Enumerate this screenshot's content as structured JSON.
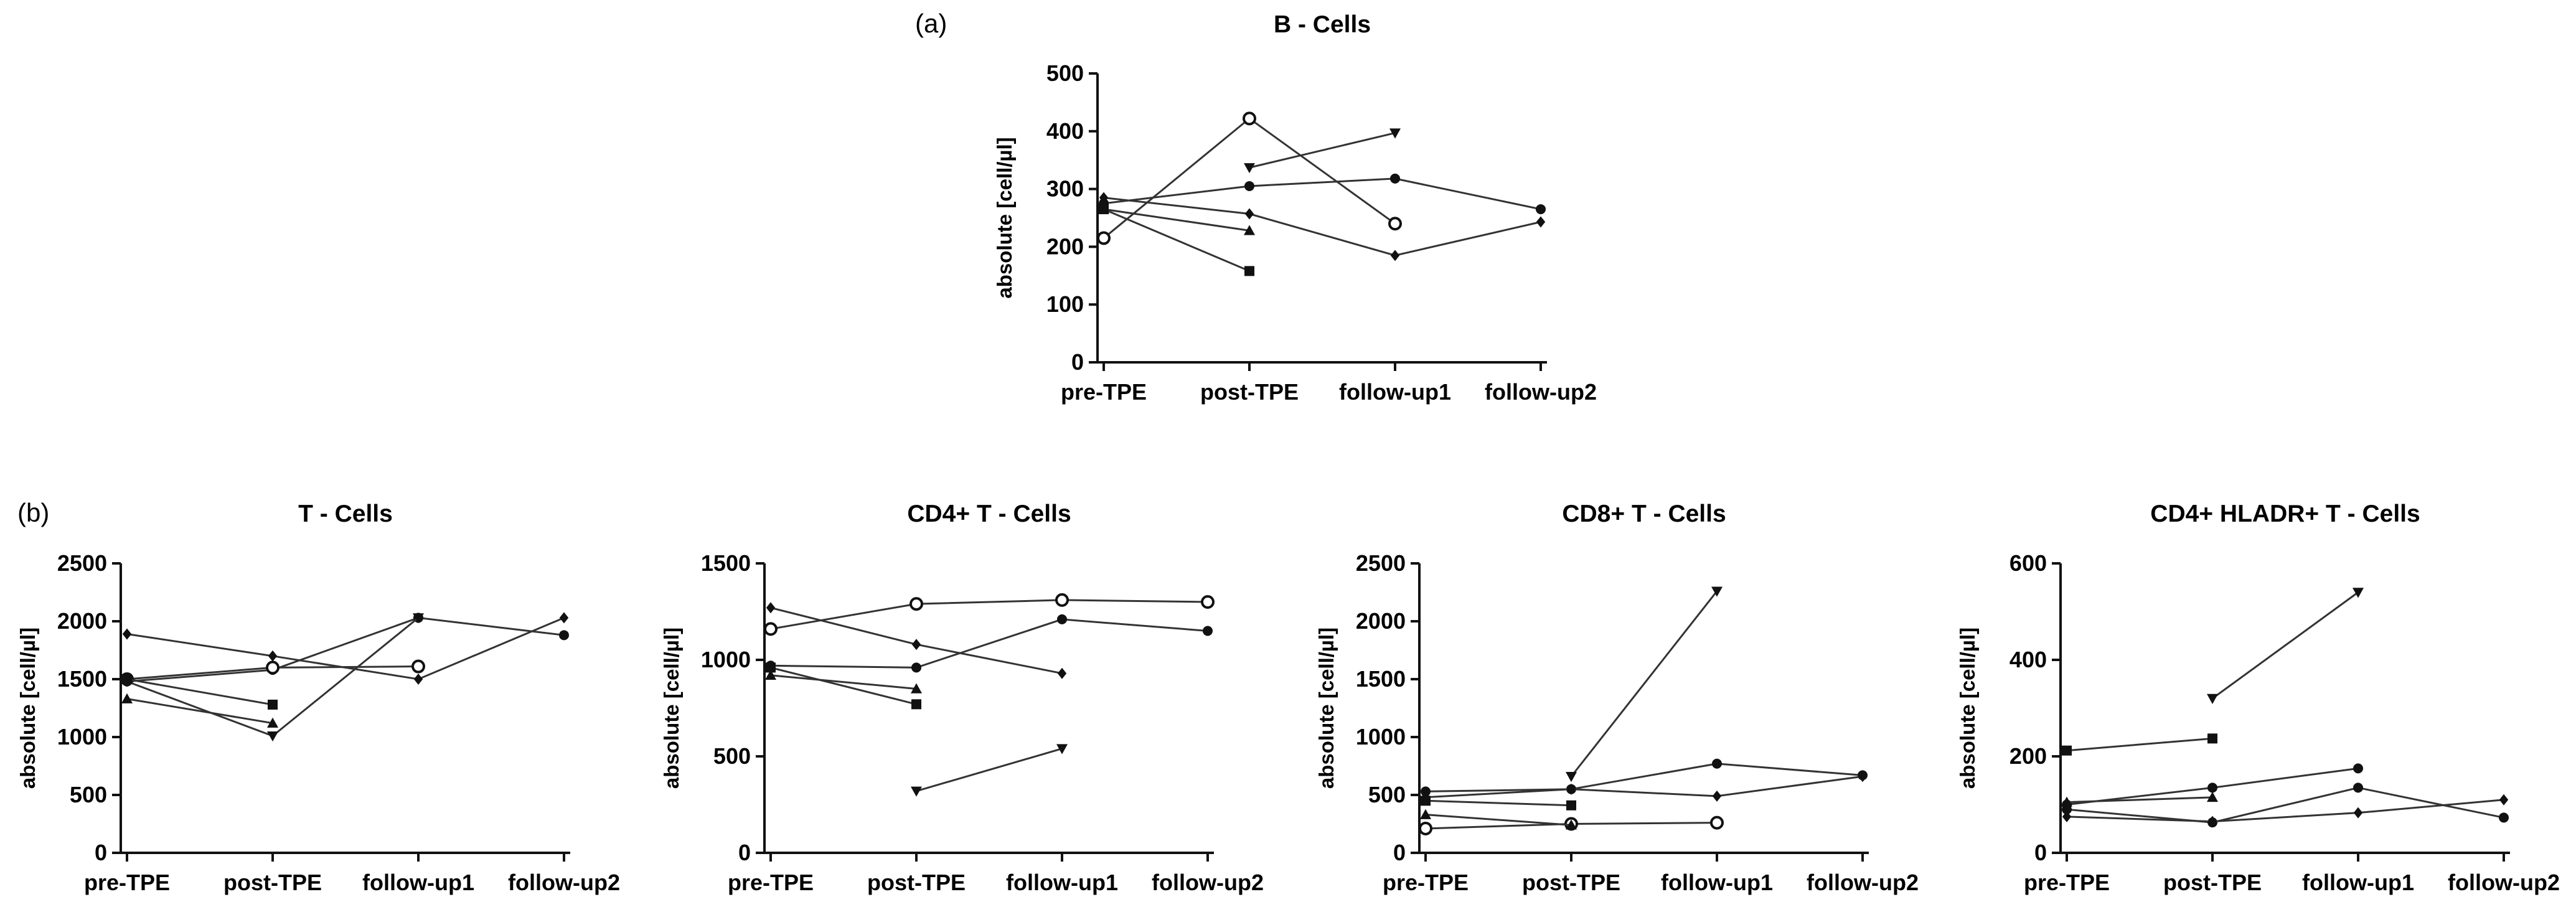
{
  "panel_labels": {
    "a": "(a)",
    "b": "(b)"
  },
  "chart_data": [
    {
      "id": "b-cells",
      "type": "line",
      "title": "B - Cells",
      "xlabel": "",
      "ylabel": "absolute [cell/µl]",
      "categories": [
        "pre-TPE",
        "post-TPE",
        "follow-up1",
        "follow-up2"
      ],
      "ylim": [
        0,
        500
      ],
      "yticks": [
        0,
        100,
        200,
        300,
        400,
        500
      ],
      "series": [
        {
          "name": "patient-circle-filled",
          "marker": "circle",
          "values": [
            275,
            305,
            318,
            265
          ]
        },
        {
          "name": "patient-circle-open",
          "marker": "circle-open",
          "values": [
            215,
            422,
            240,
            null
          ]
        },
        {
          "name": "patient-triangle-down",
          "marker": "triangle-down",
          "values": [
            null,
            337,
            397,
            null
          ]
        },
        {
          "name": "patient-diamond",
          "marker": "diamond",
          "values": [
            285,
            257,
            185,
            243
          ]
        },
        {
          "name": "patient-triangle-up",
          "marker": "triangle-up",
          "values": [
            265,
            228,
            null,
            null
          ]
        },
        {
          "name": "patient-square",
          "marker": "square",
          "values": [
            265,
            158,
            null,
            null
          ]
        }
      ]
    },
    {
      "id": "t-cells",
      "type": "line",
      "title": "T - Cells",
      "xlabel": "",
      "ylabel": "absolute [cell/µl]",
      "categories": [
        "pre-TPE",
        "post-TPE",
        "follow-up1",
        "follow-up2"
      ],
      "ylim": [
        0,
        2500
      ],
      "yticks": [
        0,
        500,
        1000,
        1500,
        2000,
        2500
      ],
      "series": [
        {
          "name": "patient-circle-filled",
          "marker": "circle",
          "values": [
            1480,
            1580,
            2030,
            1880
          ]
        },
        {
          "name": "patient-circle-open",
          "marker": "circle-open",
          "values": [
            1500,
            1600,
            1610,
            null
          ]
        },
        {
          "name": "patient-triangle-down",
          "marker": "triangle-down",
          "values": [
            1480,
            1010,
            2030,
            null
          ]
        },
        {
          "name": "patient-diamond",
          "marker": "diamond",
          "values": [
            1890,
            1700,
            1500,
            2030
          ]
        },
        {
          "name": "patient-triangle-up",
          "marker": "triangle-up",
          "values": [
            1330,
            1120,
            null,
            null
          ]
        },
        {
          "name": "patient-square",
          "marker": "square",
          "values": [
            1500,
            1280,
            null,
            null
          ]
        }
      ]
    },
    {
      "id": "cd4-t-cells",
      "type": "line",
      "title": "CD4+ T - Cells",
      "xlabel": "",
      "ylabel": "absolute [cell/µl]",
      "categories": [
        "pre-TPE",
        "post-TPE",
        "follow-up1",
        "follow-up2"
      ],
      "ylim": [
        0,
        1500
      ],
      "yticks": [
        0,
        500,
        1000,
        1500
      ],
      "series": [
        {
          "name": "patient-circle-filled",
          "marker": "circle",
          "values": [
            970,
            960,
            1210,
            1150
          ]
        },
        {
          "name": "patient-circle-open",
          "marker": "circle-open",
          "values": [
            1160,
            1290,
            1310,
            1300
          ]
        },
        {
          "name": "patient-triangle-down",
          "marker": "triangle-down",
          "values": [
            null,
            320,
            540,
            null
          ]
        },
        {
          "name": "patient-diamond",
          "marker": "diamond",
          "values": [
            1270,
            1080,
            930,
            null
          ]
        },
        {
          "name": "patient-triangle-up",
          "marker": "triangle-up",
          "values": [
            920,
            850,
            null,
            null
          ]
        },
        {
          "name": "patient-square",
          "marker": "square",
          "values": [
            960,
            770,
            null,
            null
          ]
        }
      ]
    },
    {
      "id": "cd8-t-cells",
      "type": "line",
      "title": "CD8+ T - Cells",
      "xlabel": "",
      "ylabel": "absolute [cell/µl]",
      "categories": [
        "pre-TPE",
        "post-TPE",
        "follow-up1",
        "follow-up2"
      ],
      "ylim": [
        0,
        2500
      ],
      "yticks": [
        0,
        500,
        1000,
        1500,
        2000,
        2500
      ],
      "series": [
        {
          "name": "patient-circle-filled",
          "marker": "circle",
          "values": [
            530,
            550,
            770,
            670
          ]
        },
        {
          "name": "patient-circle-open",
          "marker": "circle-open",
          "values": [
            210,
            250,
            260,
            null
          ]
        },
        {
          "name": "patient-triangle-down",
          "marker": "triangle-down",
          "values": [
            null,
            660,
            2260,
            null
          ]
        },
        {
          "name": "patient-diamond",
          "marker": "diamond",
          "values": [
            480,
            550,
            490,
            660
          ]
        },
        {
          "name": "patient-triangle-up",
          "marker": "triangle-up",
          "values": [
            330,
            240,
            null,
            null
          ]
        },
        {
          "name": "patient-square",
          "marker": "square",
          "values": [
            450,
            410,
            null,
            null
          ]
        }
      ]
    },
    {
      "id": "cd4-hladr-t-cells",
      "type": "line",
      "title": "CD4+ HLADR+ T - Cells",
      "xlabel": "",
      "ylabel": "absolute [cell/µl]",
      "categories": [
        "pre-TPE",
        "post-TPE",
        "follow-up1",
        "follow-up2"
      ],
      "ylim": [
        0,
        600
      ],
      "yticks": [
        0,
        200,
        400,
        600
      ],
      "series": [
        {
          "name": "patient-circle-filled",
          "marker": "circle",
          "values": [
            90,
            63,
            135,
            73
          ]
        },
        {
          "name": "patient-circle-open",
          "marker": "circle",
          "values": [
            100,
            135,
            175,
            null
          ]
        },
        {
          "name": "patient-triangle-down",
          "marker": "triangle-down",
          "values": [
            null,
            320,
            540,
            null
          ]
        },
        {
          "name": "patient-diamond",
          "marker": "diamond",
          "values": [
            75,
            65,
            83,
            110
          ]
        },
        {
          "name": "patient-triangle-up",
          "marker": "triangle-up",
          "values": [
            105,
            115,
            null,
            null
          ]
        },
        {
          "name": "patient-square",
          "marker": "square",
          "values": [
            212,
            237,
            null,
            null
          ]
        }
      ]
    }
  ]
}
